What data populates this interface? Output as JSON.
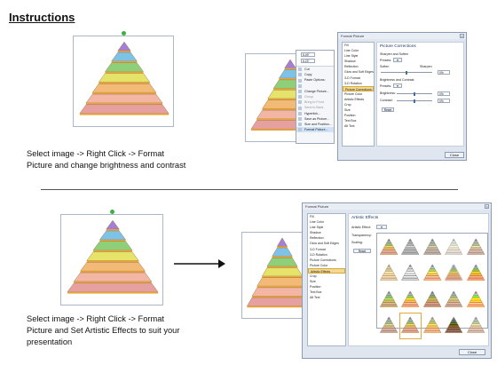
{
  "page": {
    "title": "Instructions"
  },
  "steps": [
    {
      "text_line1": "Select image -> Right Click -> Format",
      "text_line2": "Picture and change brightness and contrast",
      "text_line3": ""
    },
    {
      "text_line1": "Select image -> Right Click -> Format",
      "text_line2": "Picture and Set Artistic Effects to suit your",
      "text_line3": "presentation"
    }
  ],
  "colors": {
    "tiers": [
      "#a57fd6",
      "#7dc3e8",
      "#8ed07a",
      "#e6e36a",
      "#f2b977",
      "#f3b6a4",
      "#e7a0a0"
    ]
  },
  "context_menu": {
    "font_value": "5.49\"",
    "size_value": "6.23\"",
    "items": [
      {
        "label": "Cut",
        "dim": false,
        "hl": false
      },
      {
        "label": "Copy",
        "dim": false,
        "hl": false
      },
      {
        "label": "Paste Options:",
        "dim": false,
        "hl": false
      },
      {
        "label": "",
        "dim": false,
        "hl": false
      },
      {
        "label": "Change Picture...",
        "dim": false,
        "hl": false
      },
      {
        "label": "Group",
        "dim": true,
        "hl": false
      },
      {
        "label": "Bring to Front",
        "dim": true,
        "hl": false
      },
      {
        "label": "Send to Back",
        "dim": true,
        "hl": false
      },
      {
        "label": "Hyperlink...",
        "dim": false,
        "hl": false
      },
      {
        "label": "Save as Picture...",
        "dim": false,
        "hl": false
      },
      {
        "label": "Size and Position...",
        "dim": false,
        "hl": false
      },
      {
        "label": "Format Picture...",
        "dim": false,
        "hl": true
      }
    ]
  },
  "dialog1": {
    "title": "Format Picture",
    "nav": [
      "Fill",
      "Line Color",
      "Line Style",
      "Shadow",
      "Reflection",
      "Glow and Soft Edges",
      "3-D Format",
      "3-D Rotation",
      "Picture Corrections",
      "Picture Color",
      "Artistic Effects",
      "Crop",
      "Size",
      "Position",
      "Text Box",
      "Alt Text"
    ],
    "selected_nav": "Picture Corrections",
    "heading": "Picture Corrections",
    "sharpen_group": "Sharpen and Soften",
    "presets_label": "Presets:",
    "soften_label": "Soften",
    "sharpen_label": "Sharpen",
    "sharpen_value": "0%",
    "brightness_group": "Brightness and Contrast",
    "brightness_label": "Brightness:",
    "brightness_value": "0%",
    "contrast_label": "Contrast:",
    "contrast_value": "0%",
    "reset_label": "Reset",
    "close_label": "Close"
  },
  "dialog2": {
    "title": "Format Picture",
    "nav": [
      "Fill",
      "Line Color",
      "Line Style",
      "Shadow",
      "Reflection",
      "Glow and Soft Edges",
      "3-D Format",
      "3-D Rotation",
      "Picture Corrections",
      "Picture Color",
      "Artistic Effects",
      "Crop",
      "Size",
      "Position",
      "Text Box",
      "Alt Text"
    ],
    "selected_nav": "Artistic Effects",
    "heading": "Artistic Effects",
    "effect_label": "Artistic Effect:",
    "transparency_label": "Transparency:",
    "scaling_label": "Scaling:",
    "reset_label": "Reset",
    "close_label": "Close",
    "selected_thumb": 16
  }
}
